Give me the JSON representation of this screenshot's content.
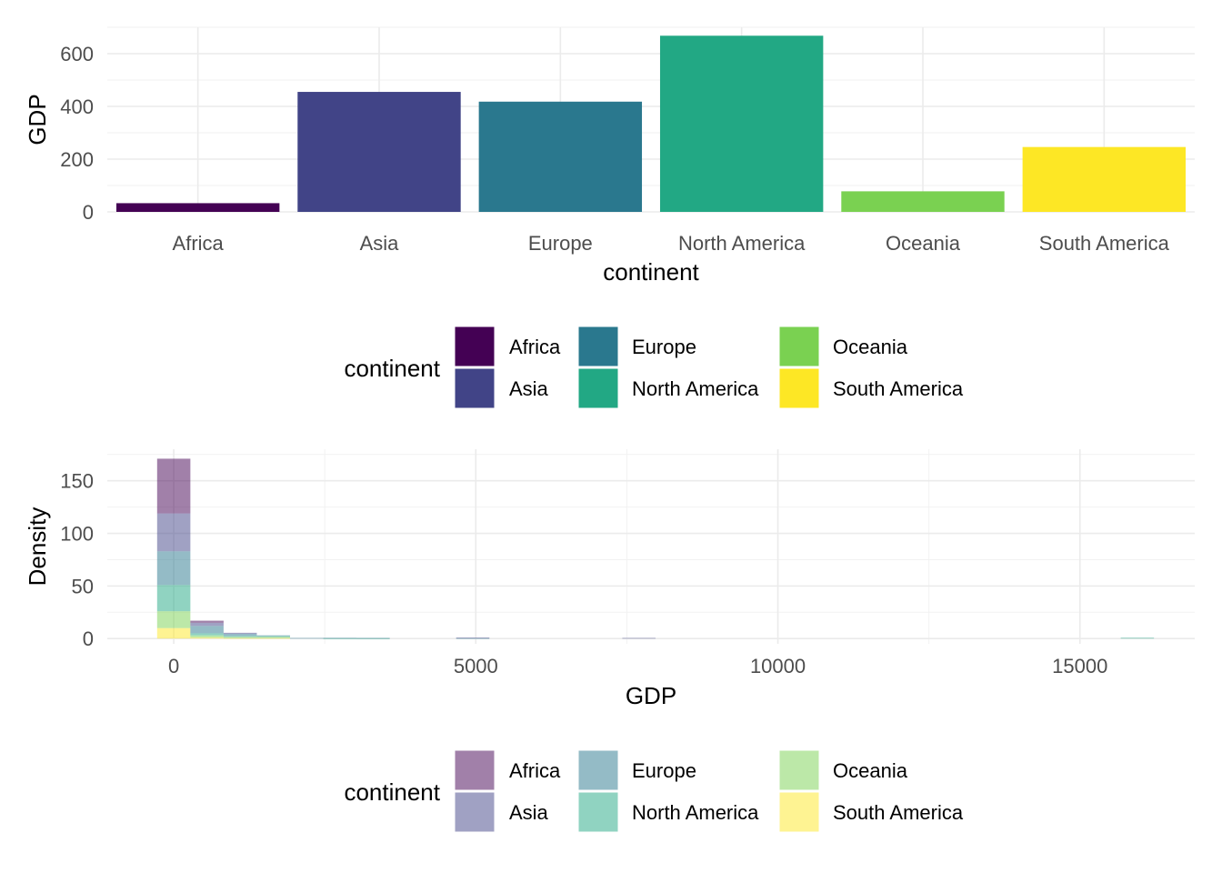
{
  "chart_data": [
    {
      "type": "bar",
      "xlabel": "continent",
      "ylabel": "GDP",
      "categories": [
        "Africa",
        "Asia",
        "Europe",
        "North America",
        "Oceania",
        "South America"
      ],
      "values": [
        33,
        455,
        418,
        668,
        78,
        246
      ],
      "ylim": [
        0,
        700
      ],
      "yticks": [
        "0",
        "200",
        "400",
        "600"
      ],
      "grid": true,
      "legend": {
        "title": "continent",
        "position": "bottom",
        "items": [
          "Africa",
          "Asia",
          "Europe",
          "North America",
          "Oceania",
          "South America"
        ]
      },
      "colors": [
        "#440154",
        "#414487",
        "#2A788E",
        "#22A884",
        "#7AD151",
        "#FDE725"
      ]
    },
    {
      "type": "histogram",
      "stacked": true,
      "xlabel": "GDP",
      "ylabel": "Density",
      "xticks": [
        "0",
        "5000",
        "10000",
        "15000"
      ],
      "yticks": [
        "0",
        "50",
        "100",
        "150"
      ],
      "xlim": [
        -1100,
        16900
      ],
      "ylim": [
        -5,
        180
      ],
      "bin_width": 550,
      "series": [
        {
          "name": "Africa",
          "values": [
            {
              "x": 0,
              "y": 52
            },
            {
              "x": 550,
              "y": 2
            }
          ]
        },
        {
          "name": "Asia",
          "values": [
            {
              "x": 0,
              "y": 36
            },
            {
              "x": 550,
              "y": 3
            },
            {
              "x": 1100,
              "y": 1
            },
            {
              "x": 4950,
              "y": 0.5
            },
            {
              "x": 7700,
              "y": 0.6
            }
          ]
        },
        {
          "name": "Europe",
          "values": [
            {
              "x": 0,
              "y": 32
            },
            {
              "x": 550,
              "y": 7
            },
            {
              "x": 1100,
              "y": 2
            },
            {
              "x": 1650,
              "y": 0.8
            },
            {
              "x": 2200,
              "y": 0.6
            },
            {
              "x": 2750,
              "y": 0.4
            },
            {
              "x": 3300,
              "y": 0.3
            },
            {
              "x": 4950,
              "y": 0.4
            }
          ]
        },
        {
          "name": "North America",
          "values": [
            {
              "x": 0,
              "y": 25
            },
            {
              "x": 550,
              "y": 2
            },
            {
              "x": 1100,
              "y": 1
            },
            {
              "x": 1650,
              "y": 0.8
            },
            {
              "x": 2750,
              "y": 0.3
            },
            {
              "x": 3300,
              "y": 0.3
            },
            {
              "x": 15950,
              "y": 0.8
            }
          ]
        },
        {
          "name": "Oceania",
          "values": [
            {
              "x": 0,
              "y": 16
            },
            {
              "x": 550,
              "y": 2
            },
            {
              "x": 1100,
              "y": 1
            },
            {
              "x": 1650,
              "y": 1
            }
          ]
        },
        {
          "name": "South America",
          "values": [
            {
              "x": 0,
              "y": 10
            },
            {
              "x": 550,
              "y": 1
            },
            {
              "x": 1100,
              "y": 0.5
            },
            {
              "x": 1650,
              "y": 0.5
            }
          ]
        }
      ],
      "grid": true,
      "legend": {
        "title": "continent",
        "position": "bottom",
        "items": [
          "Africa",
          "Asia",
          "Europe",
          "North America",
          "Oceania",
          "South America"
        ]
      },
      "colors": [
        "#440154",
        "#414487",
        "#2A788E",
        "#22A884",
        "#7AD151",
        "#FDE725"
      ],
      "alpha": 0.5
    }
  ]
}
